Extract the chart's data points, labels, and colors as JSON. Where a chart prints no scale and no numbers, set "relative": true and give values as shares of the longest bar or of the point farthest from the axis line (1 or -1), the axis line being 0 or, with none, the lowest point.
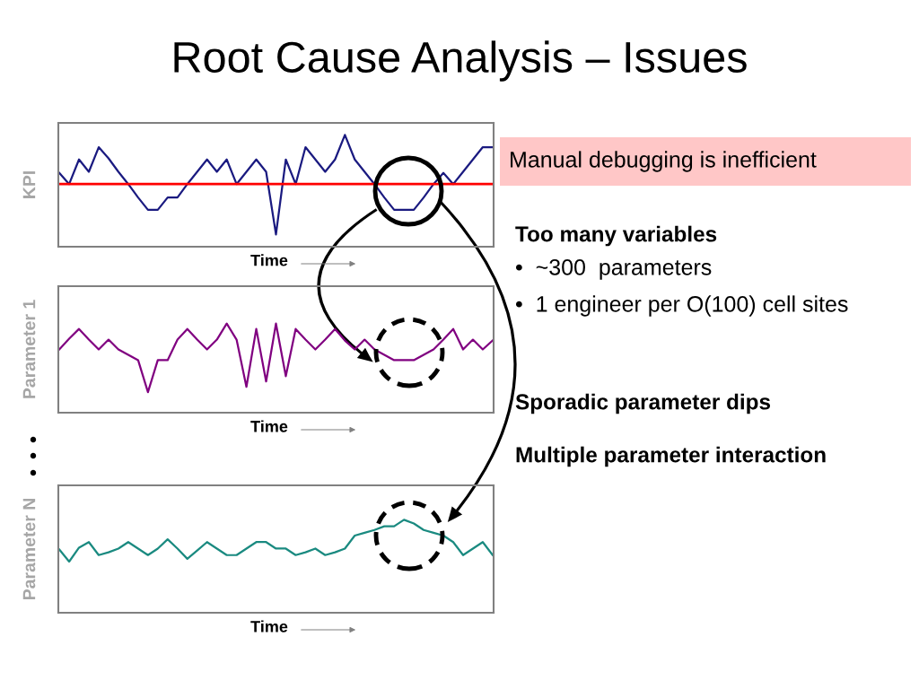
{
  "chart_data": [
    {
      "type": "line",
      "title": "Root Cause Analysis – Issues",
      "relative": true,
      "xlabel": "Time",
      "ylabel": "KPI",
      "categories": [
        null,
        null,
        null,
        null,
        null,
        null,
        null,
        null,
        null,
        null,
        null,
        null,
        null,
        null,
        null,
        null,
        null,
        null,
        null,
        null,
        null,
        null,
        null,
        null,
        null,
        null,
        null,
        null,
        null,
        null,
        null,
        null,
        null,
        null,
        null,
        null,
        null,
        null,
        null,
        null,
        null,
        null,
        null,
        null,
        null
      ],
      "series": [
        {
          "color": "#1a1a80",
          "values": [
            0.66,
            0.56,
            0.78,
            0.67,
            0.89,
            0.79,
            0.67,
            0.56,
            0.44,
            0.33,
            0.33,
            0.44,
            0.44,
            0.56,
            0.67,
            0.78,
            0.67,
            0.78,
            0.56,
            0.67,
            0.78,
            0.67,
            0.11,
            0.78,
            0.56,
            0.89,
            0.78,
            0.67,
            0.78,
            1,
            0.78,
            0.67,
            0.56,
            0.44,
            0.33,
            0.33,
            0.33,
            0.44,
            0.56,
            0.66,
            0.56,
            0.67,
            0.78,
            0.89,
            0.89
          ]
        }
      ],
      "ref_lines": [
        {
          "axis": "y",
          "value": 0.56,
          "color": "#ff0000"
        }
      ],
      "grid": false
    },
    {
      "type": "line",
      "relative": true,
      "xlabel": "Time",
      "ylabel": "Parameter 1",
      "categories": [
        null,
        null,
        null,
        null,
        null,
        null,
        null,
        null,
        null,
        null,
        null,
        null,
        null,
        null,
        null,
        null,
        null,
        null,
        null,
        null,
        null,
        null,
        null,
        null,
        null,
        null,
        null,
        null,
        null,
        null,
        null,
        null,
        null,
        null,
        null,
        null,
        null,
        null,
        null,
        null,
        null,
        null,
        null,
        null,
        null
      ],
      "series": [
        {
          "color": "#800080",
          "values": [
            0.71,
            0.83,
            0.94,
            0.82,
            0.71,
            0.82,
            0.71,
            0.65,
            0.59,
            0.23,
            0.59,
            0.59,
            0.82,
            0.94,
            0.82,
            0.71,
            0.82,
            1,
            0.82,
            0.29,
            0.94,
            0.35,
            1,
            0.41,
            0.94,
            0.82,
            0.71,
            0.82,
            0.94,
            0.81,
            0.71,
            0.82,
            0.71,
            0.65,
            0.59,
            0.59,
            0.59,
            0.65,
            0.71,
            0.82,
            0.94,
            0.71,
            0.82,
            0.71,
            0.81
          ]
        }
      ],
      "grid": false
    },
    {
      "type": "line",
      "relative": true,
      "xlabel": "Time",
      "ylabel": "Parameter N",
      "categories": [
        null,
        null,
        null,
        null,
        null,
        null,
        null,
        null,
        null,
        null,
        null,
        null,
        null,
        null,
        null,
        null,
        null,
        null,
        null,
        null,
        null,
        null,
        null,
        null,
        null,
        null,
        null,
        null,
        null,
        null,
        null,
        null,
        null,
        null,
        null,
        null,
        null,
        null,
        null,
        null,
        null,
        null,
        null,
        null,
        null
      ],
      "series": [
        {
          "color": "#1a8a80",
          "values": [
            0.68,
            0.55,
            0.7,
            0.76,
            0.62,
            0.65,
            0.69,
            0.76,
            0.69,
            0.62,
            0.69,
            0.79,
            0.69,
            0.58,
            0.67,
            0.76,
            0.69,
            0.62,
            0.62,
            0.69,
            0.76,
            0.76,
            0.69,
            0.69,
            0.62,
            0.65,
            0.69,
            0.62,
            0.65,
            0.69,
            0.83,
            0.86,
            0.89,
            0.93,
            0.93,
            1,
            0.96,
            0.89,
            0.86,
            0.83,
            0.76,
            0.62,
            0.69,
            0.76,
            0.62
          ]
        }
      ],
      "grid": false
    },
    {
      "type": "other",
      "annotations": [
        "Manual debugging is inefficient",
        "Too many variables",
        "•  ~300  parameters",
        "•  1 engineer per O(100) cell sites",
        "Sporadic parameter dips",
        "Multiple parameter interaction"
      ]
    }
  ]
}
